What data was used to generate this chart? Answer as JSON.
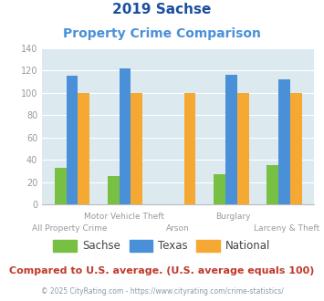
{
  "title_line1": "2019 Sachse",
  "title_line2": "Property Crime Comparison",
  "categories": [
    "All Property Crime",
    "Motor Vehicle Theft",
    "Arson",
    "Burglary",
    "Larceny & Theft"
  ],
  "top_labels": [
    "",
    "Motor Vehicle Theft",
    "",
    "Burglary",
    ""
  ],
  "bottom_labels": [
    "All Property Crime",
    "",
    "Arson",
    "",
    "Larceny & Theft"
  ],
  "sachse": [
    33,
    26,
    0,
    27,
    35
  ],
  "texas": [
    115,
    122,
    0,
    116,
    112
  ],
  "national": [
    100,
    100,
    100,
    100,
    100
  ],
  "bar_colors": {
    "sachse": "#77c044",
    "texas": "#4a90d9",
    "national": "#f5a832"
  },
  "ylim": [
    0,
    140
  ],
  "yticks": [
    0,
    20,
    40,
    60,
    80,
    100,
    120,
    140
  ],
  "background_color": "#dce9ef",
  "title_color": "#1a4fa0",
  "subtitle_color": "#4a90d9",
  "footer_note": "Compared to U.S. average. (U.S. average equals 100)",
  "footer_credit": "© 2025 CityRating.com - https://www.cityrating.com/crime-statistics/",
  "footer_note_color": "#c0392b",
  "footer_credit_color": "#8899aa",
  "xlabel_color": "#999999",
  "ylabel_color": "#999999"
}
